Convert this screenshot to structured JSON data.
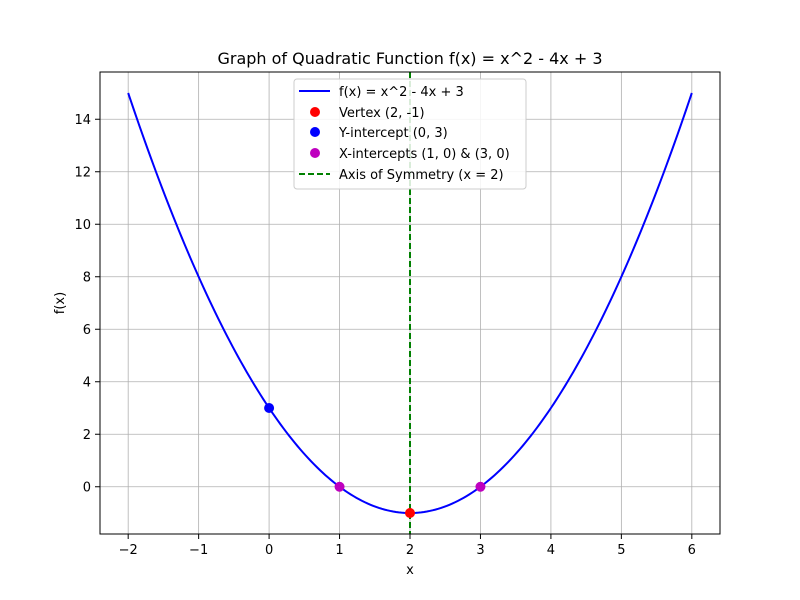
{
  "chart_data": {
    "type": "line",
    "title": "Graph of Quadratic Function f(x) = x^2 - 4x + 3",
    "xlabel": "x",
    "ylabel": "f(x)",
    "xlim": [
      -2.4,
      6.4
    ],
    "ylim": [
      -1.8,
      15.8
    ],
    "x_ticks": [
      -2,
      -1,
      0,
      1,
      2,
      3,
      4,
      5,
      6
    ],
    "y_ticks": [
      0,
      2,
      4,
      6,
      8,
      10,
      12,
      14
    ],
    "x_tick_labels": [
      "−2",
      "−1",
      "0",
      "1",
      "2",
      "3",
      "4",
      "5",
      "6"
    ],
    "y_tick_labels": [
      "0",
      "2",
      "4",
      "6",
      "8",
      "10",
      "12",
      "14"
    ],
    "grid": true,
    "legend_position": "top-center",
    "function": {
      "name": "f(x) = x^2 - 4x + 3",
      "coefficients": {
        "a": 1,
        "b": -4,
        "c": 3
      },
      "domain": [
        -2,
        6
      ],
      "color": "#0000ff"
    },
    "points": [
      {
        "name": "Vertex (2, -1)",
        "color": "#ff0000",
        "points": [
          [
            2,
            -1
          ]
        ]
      },
      {
        "name": "Y-intercept (0, 3)",
        "color": "#0000ff",
        "points": [
          [
            0,
            3
          ]
        ]
      },
      {
        "name": "X-intercepts (1, 0) & (3, 0)",
        "color": "#bf00bf",
        "points": [
          [
            1,
            0
          ],
          [
            3,
            0
          ]
        ]
      }
    ],
    "axis_of_symmetry": {
      "name": "Axis of Symmetry (x = 2)",
      "x": 2,
      "color": "#008000",
      "style": "dashed"
    }
  }
}
